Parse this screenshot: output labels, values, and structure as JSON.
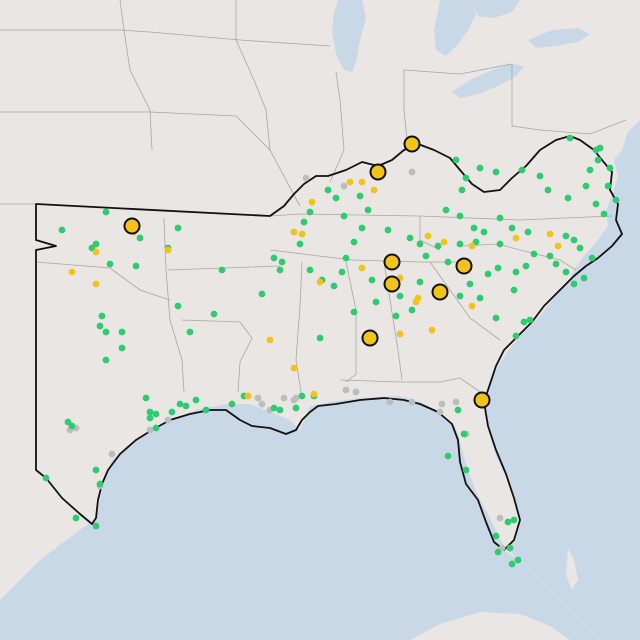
{
  "map": {
    "type": "point-map",
    "colors": {
      "land": "#e9e6e3",
      "water": "#c9d8e6",
      "state_border": "#a8a6a4",
      "region_outline": "#111111",
      "marker_green": "#2ecc71",
      "marker_yellow": "#f2c31b",
      "marker_gray": "#bdbdbd"
    },
    "marker_types": [
      "green-dot",
      "yellow-dot",
      "gray-dot",
      "large-yellow-circle"
    ]
  }
}
